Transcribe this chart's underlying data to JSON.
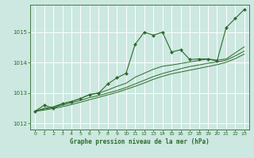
{
  "bg_color": "#cce8e0",
  "grid_color": "#ffffff",
  "line_color": "#2d6a2d",
  "marker_color": "#2d6a2d",
  "title": "Graphe pression niveau de la mer (hPa)",
  "title_color": "#2d6a2d",
  "ylim": [
    1011.8,
    1015.9
  ],
  "xlim": [
    -0.5,
    23.5
  ],
  "yticks": [
    1012,
    1013,
    1014,
    1015
  ],
  "xticks": [
    0,
    1,
    2,
    3,
    4,
    5,
    6,
    7,
    8,
    9,
    10,
    11,
    12,
    13,
    14,
    15,
    16,
    17,
    18,
    19,
    20,
    21,
    22,
    23
  ],
  "series": [
    [
      1012.4,
      1012.6,
      1012.5,
      1012.65,
      1012.72,
      1012.82,
      1012.95,
      1013.0,
      1013.3,
      1013.5,
      1013.65,
      1014.6,
      1015.0,
      1014.9,
      1015.0,
      1014.35,
      1014.42,
      1014.1,
      1014.12,
      1014.12,
      1014.05,
      1015.15,
      1015.45,
      1015.75
    ],
    [
      1012.4,
      1012.5,
      1012.55,
      1012.65,
      1012.72,
      1012.82,
      1012.95,
      1013.0,
      1013.1,
      1013.22,
      1013.32,
      1013.52,
      1013.65,
      1013.78,
      1013.88,
      1013.92,
      1013.97,
      1014.02,
      1014.07,
      1014.12,
      1014.08,
      1014.12,
      1014.32,
      1014.52
    ],
    [
      1012.4,
      1012.47,
      1012.52,
      1012.6,
      1012.68,
      1012.76,
      1012.85,
      1012.92,
      1013.0,
      1013.08,
      1013.18,
      1013.3,
      1013.42,
      1013.54,
      1013.64,
      1013.72,
      1013.8,
      1013.87,
      1013.92,
      1013.98,
      1014.02,
      1014.08,
      1014.22,
      1014.38
    ],
    [
      1012.4,
      1012.44,
      1012.49,
      1012.55,
      1012.62,
      1012.7,
      1012.78,
      1012.86,
      1012.94,
      1013.02,
      1013.12,
      1013.22,
      1013.33,
      1013.45,
      1013.55,
      1013.63,
      1013.69,
      1013.75,
      1013.81,
      1013.87,
      1013.93,
      1014.01,
      1014.13,
      1014.28
    ]
  ]
}
